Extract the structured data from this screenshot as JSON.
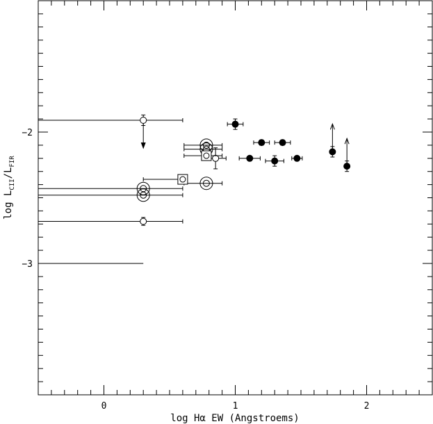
{
  "chart_data": {
    "type": "scatter",
    "title": "",
    "xlabel": "log Hα EW (Angstroems)",
    "ylabel": {
      "prefix": "log  L",
      "num_sub": "CII",
      "slash": "/L",
      "den_sub": "FIR"
    },
    "xlim": [
      -0.5,
      2.5
    ],
    "ylim": [
      -4.0,
      -1.0
    ],
    "x_ticks": [
      0,
      1,
      2
    ],
    "x_tick_labels": [
      "0",
      "1",
      "2"
    ],
    "y_ticks": [
      -2,
      -3
    ],
    "y_tick_labels": [
      "−2",
      "−3"
    ],
    "grid": false,
    "legend": "none",
    "series": [
      {
        "marker": "filled-circle",
        "points": [
          {
            "x": 1.0,
            "y": -1.94,
            "xerr": [
              0.06,
              0.06
            ],
            "yerr": [
              0.04,
              0.04
            ]
          },
          {
            "x": 1.2,
            "y": -2.08,
            "xerr": [
              0.06,
              0.06
            ],
            "yerr": [
              0.02,
              0.02
            ]
          },
          {
            "x": 1.36,
            "y": -2.08,
            "xerr": [
              0.06,
              0.06
            ],
            "yerr": [
              0.02,
              0.02
            ]
          },
          {
            "x": 1.11,
            "y": -2.2,
            "xerr": [
              0.08,
              0.08
            ],
            "yerr": [
              0,
              0
            ]
          },
          {
            "x": 1.3,
            "y": -2.22,
            "xerr": [
              0.07,
              0.07
            ],
            "yerr": [
              0.04,
              0.04
            ]
          },
          {
            "x": 1.47,
            "y": -2.2,
            "xerr": [
              0.04,
              0.04
            ],
            "yerr": [
              0,
              0
            ]
          },
          {
            "x": 1.74,
            "y": -2.15,
            "xerr": [
              0,
              0
            ],
            "yerr": [
              0.04,
              0.04
            ],
            "arrow": "up"
          },
          {
            "x": 1.85,
            "y": -2.26,
            "xerr": [
              0,
              0
            ],
            "yerr": [
              0.04,
              0.04
            ],
            "arrow": "up"
          }
        ]
      },
      {
        "marker": "open-circle",
        "points": [
          {
            "x": 0.3,
            "y": -1.91,
            "xerr": [
              0.8,
              0.3
            ],
            "yerr": [
              0.04,
              0.04
            ],
            "arrow": "down"
          },
          {
            "x": 0.3,
            "y": -2.68,
            "xerr": [
              0.8,
              0.3
            ],
            "yerr": [
              0.03,
              0.03
            ]
          },
          {
            "x": 0.85,
            "y": -2.2,
            "xerr": [
              0.08,
              0.08
            ],
            "yerr": [
              0.08,
              0.08
            ]
          }
        ]
      },
      {
        "marker": "double-circle",
        "points": [
          {
            "x": 0.3,
            "y": -2.43,
            "xerr": [
              0.8,
              0.3
            ],
            "yerr": [
              0,
              0
            ]
          },
          {
            "x": 0.3,
            "y": -2.48,
            "xerr": [
              0.8,
              0.3
            ],
            "yerr": [
              0,
              0
            ]
          },
          {
            "x": 0.78,
            "y": -2.1,
            "xerr": [
              0.17,
              0.12
            ],
            "yerr": [
              0,
              0
            ]
          },
          {
            "x": 0.78,
            "y": -2.13,
            "xerr": [
              0.17,
              0.12
            ],
            "yerr": [
              0,
              0
            ]
          },
          {
            "x": 0.78,
            "y": -2.39,
            "xerr": [
              0.17,
              0.12
            ],
            "yerr": [
              0,
              0
            ]
          }
        ]
      },
      {
        "marker": "boxed-circle",
        "points": [
          {
            "x": 0.6,
            "y": -2.36,
            "xerr": [
              0.3,
              0.0
            ],
            "yerr": [
              0,
              0
            ]
          },
          {
            "x": 0.78,
            "y": -2.18,
            "xerr": [
              0.17,
              0.12
            ],
            "yerr": [
              0,
              0
            ]
          }
        ]
      },
      {
        "marker": "none",
        "points": [
          {
            "x": 0.3,
            "y": -3.0,
            "xerr": [
              0.8,
              0.0
            ],
            "yerr": [
              0,
              0
            ]
          }
        ]
      }
    ]
  }
}
